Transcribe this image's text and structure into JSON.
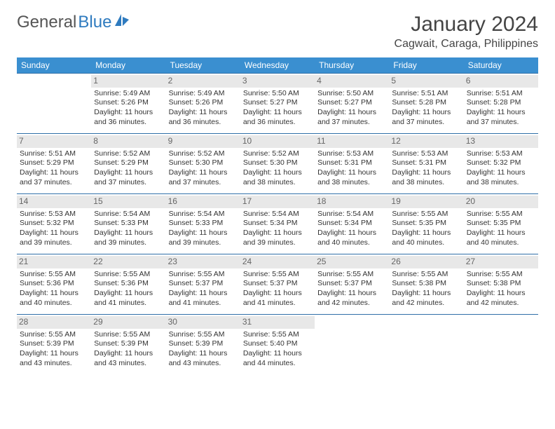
{
  "brand": {
    "part1": "General",
    "part2": "Blue"
  },
  "title": "January 2024",
  "location": "Cagwait, Caraga, Philippines",
  "colors": {
    "header_bg": "#3a8fd0",
    "header_text": "#ffffff",
    "row_border": "#2f6fa8",
    "daynum_bg": "#e8e8e8",
    "daynum_text": "#666666",
    "body_text": "#333333",
    "logo_gray": "#555555",
    "logo_blue": "#2f7bbf"
  },
  "day_headers": [
    "Sunday",
    "Monday",
    "Tuesday",
    "Wednesday",
    "Thursday",
    "Friday",
    "Saturday"
  ],
  "weeks": [
    [
      {
        "n": "",
        "sr": "",
        "ss": "",
        "dl": ""
      },
      {
        "n": "1",
        "sr": "5:49 AM",
        "ss": "5:26 PM",
        "dl": "11 hours and 36 minutes."
      },
      {
        "n": "2",
        "sr": "5:49 AM",
        "ss": "5:26 PM",
        "dl": "11 hours and 36 minutes."
      },
      {
        "n": "3",
        "sr": "5:50 AM",
        "ss": "5:27 PM",
        "dl": "11 hours and 36 minutes."
      },
      {
        "n": "4",
        "sr": "5:50 AM",
        "ss": "5:27 PM",
        "dl": "11 hours and 37 minutes."
      },
      {
        "n": "5",
        "sr": "5:51 AM",
        "ss": "5:28 PM",
        "dl": "11 hours and 37 minutes."
      },
      {
        "n": "6",
        "sr": "5:51 AM",
        "ss": "5:28 PM",
        "dl": "11 hours and 37 minutes."
      }
    ],
    [
      {
        "n": "7",
        "sr": "5:51 AM",
        "ss": "5:29 PM",
        "dl": "11 hours and 37 minutes."
      },
      {
        "n": "8",
        "sr": "5:52 AM",
        "ss": "5:29 PM",
        "dl": "11 hours and 37 minutes."
      },
      {
        "n": "9",
        "sr": "5:52 AM",
        "ss": "5:30 PM",
        "dl": "11 hours and 37 minutes."
      },
      {
        "n": "10",
        "sr": "5:52 AM",
        "ss": "5:30 PM",
        "dl": "11 hours and 38 minutes."
      },
      {
        "n": "11",
        "sr": "5:53 AM",
        "ss": "5:31 PM",
        "dl": "11 hours and 38 minutes."
      },
      {
        "n": "12",
        "sr": "5:53 AM",
        "ss": "5:31 PM",
        "dl": "11 hours and 38 minutes."
      },
      {
        "n": "13",
        "sr": "5:53 AM",
        "ss": "5:32 PM",
        "dl": "11 hours and 38 minutes."
      }
    ],
    [
      {
        "n": "14",
        "sr": "5:53 AM",
        "ss": "5:32 PM",
        "dl": "11 hours and 39 minutes."
      },
      {
        "n": "15",
        "sr": "5:54 AM",
        "ss": "5:33 PM",
        "dl": "11 hours and 39 minutes."
      },
      {
        "n": "16",
        "sr": "5:54 AM",
        "ss": "5:33 PM",
        "dl": "11 hours and 39 minutes."
      },
      {
        "n": "17",
        "sr": "5:54 AM",
        "ss": "5:34 PM",
        "dl": "11 hours and 39 minutes."
      },
      {
        "n": "18",
        "sr": "5:54 AM",
        "ss": "5:34 PM",
        "dl": "11 hours and 40 minutes."
      },
      {
        "n": "19",
        "sr": "5:55 AM",
        "ss": "5:35 PM",
        "dl": "11 hours and 40 minutes."
      },
      {
        "n": "20",
        "sr": "5:55 AM",
        "ss": "5:35 PM",
        "dl": "11 hours and 40 minutes."
      }
    ],
    [
      {
        "n": "21",
        "sr": "5:55 AM",
        "ss": "5:36 PM",
        "dl": "11 hours and 40 minutes."
      },
      {
        "n": "22",
        "sr": "5:55 AM",
        "ss": "5:36 PM",
        "dl": "11 hours and 41 minutes."
      },
      {
        "n": "23",
        "sr": "5:55 AM",
        "ss": "5:37 PM",
        "dl": "11 hours and 41 minutes."
      },
      {
        "n": "24",
        "sr": "5:55 AM",
        "ss": "5:37 PM",
        "dl": "11 hours and 41 minutes."
      },
      {
        "n": "25",
        "sr": "5:55 AM",
        "ss": "5:37 PM",
        "dl": "11 hours and 42 minutes."
      },
      {
        "n": "26",
        "sr": "5:55 AM",
        "ss": "5:38 PM",
        "dl": "11 hours and 42 minutes."
      },
      {
        "n": "27",
        "sr": "5:55 AM",
        "ss": "5:38 PM",
        "dl": "11 hours and 42 minutes."
      }
    ],
    [
      {
        "n": "28",
        "sr": "5:55 AM",
        "ss": "5:39 PM",
        "dl": "11 hours and 43 minutes."
      },
      {
        "n": "29",
        "sr": "5:55 AM",
        "ss": "5:39 PM",
        "dl": "11 hours and 43 minutes."
      },
      {
        "n": "30",
        "sr": "5:55 AM",
        "ss": "5:39 PM",
        "dl": "11 hours and 43 minutes."
      },
      {
        "n": "31",
        "sr": "5:55 AM",
        "ss": "5:40 PM",
        "dl": "11 hours and 44 minutes."
      },
      {
        "n": "",
        "sr": "",
        "ss": "",
        "dl": ""
      },
      {
        "n": "",
        "sr": "",
        "ss": "",
        "dl": ""
      },
      {
        "n": "",
        "sr": "",
        "ss": "",
        "dl": ""
      }
    ]
  ],
  "labels": {
    "sunrise": "Sunrise:",
    "sunset": "Sunset:",
    "daylight": "Daylight:"
  }
}
